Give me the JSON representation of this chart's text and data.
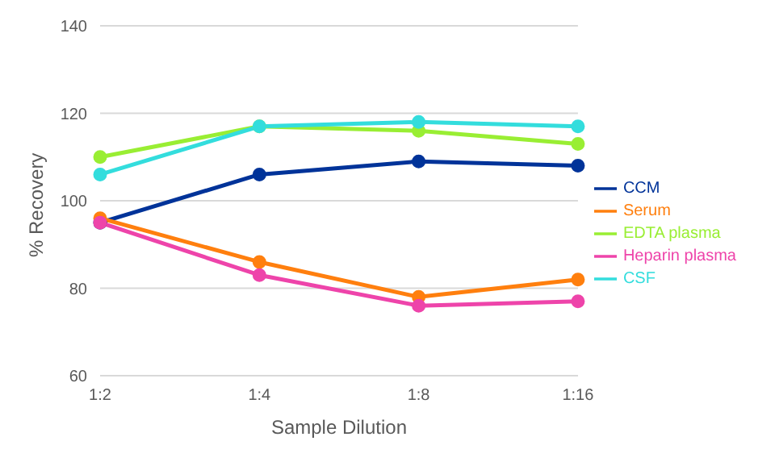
{
  "chart_data": {
    "type": "line",
    "xlabel": "Sample Dilution",
    "ylabel": "% Recovery",
    "categories": [
      "1:2",
      "1:4",
      "1:8",
      "1:16"
    ],
    "series": [
      {
        "name": "CCM",
        "color": "#003399",
        "values": [
          95,
          106,
          109,
          108
        ]
      },
      {
        "name": "Serum",
        "color": "#ff7f0e",
        "values": [
          96,
          86,
          78,
          82
        ]
      },
      {
        "name": "EDTA plasma",
        "color": "#99ee33",
        "values": [
          110,
          117,
          116,
          113
        ]
      },
      {
        "name": "Heparin plasma",
        "color": "#ee44aa",
        "values": [
          95,
          83,
          76,
          77
        ]
      },
      {
        "name": "CSF",
        "color": "#33dddd",
        "values": [
          106,
          117,
          118,
          117
        ]
      }
    ],
    "ylim": [
      60,
      140
    ],
    "yticks": [
      60,
      80,
      100,
      120,
      140
    ],
    "grid": "y",
    "legend": "right",
    "marker": "circle",
    "line_style": "solid"
  }
}
